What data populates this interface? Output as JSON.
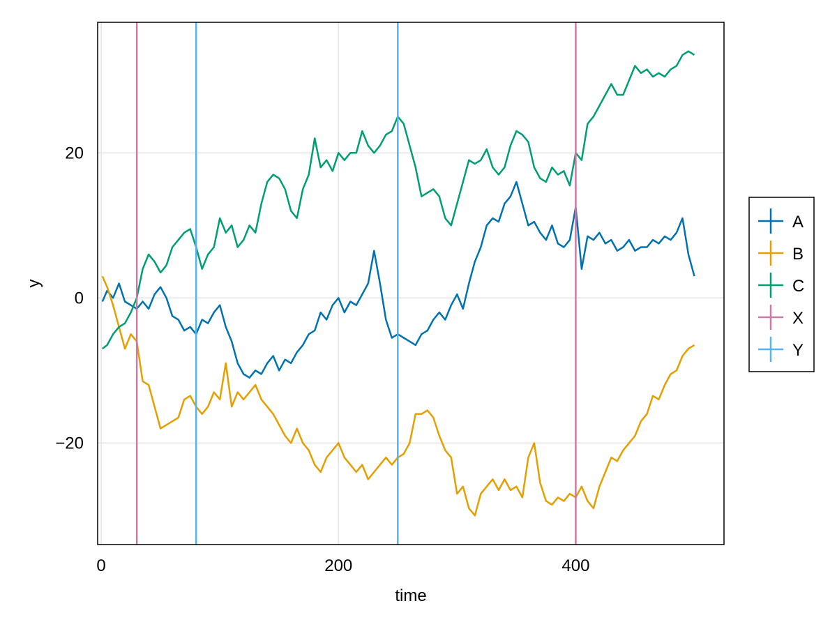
{
  "chart_data": {
    "type": "line",
    "title": "",
    "xlabel": "time",
    "ylabel": "y",
    "xlim": [
      -3,
      525
    ],
    "ylim": [
      -34,
      38
    ],
    "xticks": [
      0,
      200,
      400
    ],
    "xtick_labels": [
      "0",
      "200",
      "400"
    ],
    "yticks": [
      -20,
      0,
      20
    ],
    "ytick_labels": [
      "−20",
      "0",
      "20"
    ],
    "grid": true,
    "legend_position": "right",
    "series": [
      {
        "name": "A",
        "color": "#0072B2",
        "x": [
          1,
          5,
          10,
          15,
          20,
          25,
          30,
          35,
          40,
          45,
          50,
          55,
          60,
          65,
          70,
          75,
          80,
          85,
          90,
          95,
          100,
          105,
          110,
          115,
          120,
          125,
          130,
          135,
          140,
          145,
          150,
          155,
          160,
          165,
          170,
          175,
          180,
          185,
          190,
          195,
          200,
          205,
          210,
          215,
          220,
          225,
          230,
          235,
          240,
          245,
          250,
          255,
          260,
          265,
          270,
          275,
          280,
          285,
          290,
          295,
          300,
          305,
          310,
          315,
          320,
          325,
          330,
          335,
          340,
          345,
          350,
          355,
          360,
          365,
          370,
          375,
          380,
          385,
          390,
          395,
          400,
          405,
          410,
          415,
          420,
          425,
          430,
          435,
          440,
          445,
          450,
          455,
          460,
          465,
          470,
          475,
          480,
          485,
          490,
          495,
          500
        ],
        "y": [
          -0.5,
          1,
          0,
          2,
          -0.5,
          -1,
          -1.5,
          -0.5,
          -1.5,
          0.5,
          1.5,
          0,
          -2.5,
          -3,
          -4.5,
          -4,
          -5,
          -3,
          -3.5,
          -2,
          -1,
          -4,
          -6,
          -9,
          -10.5,
          -11,
          -10,
          -10.5,
          -9,
          -8,
          -10,
          -8.5,
          -9,
          -7.5,
          -6.5,
          -5,
          -4.5,
          -2,
          -3,
          -1,
          0,
          -2,
          -0.5,
          -1,
          0.5,
          2,
          6.5,
          2,
          -3,
          -5.5,
          -5,
          -5.5,
          -6,
          -6.5,
          -5,
          -4.5,
          -3,
          -2,
          -3,
          -1,
          0.5,
          -1.5,
          2,
          5,
          7,
          10,
          11,
          10.5,
          13,
          14,
          16,
          13,
          10,
          10.5,
          9,
          8,
          10,
          7.5,
          7,
          8,
          12.5,
          4,
          8.5,
          8,
          9,
          7.5,
          8,
          6.5,
          7,
          8,
          6.5,
          7,
          7,
          8,
          7.5,
          8.5,
          8,
          9,
          11,
          6,
          3
        ]
      },
      {
        "name": "B",
        "color": "#E69F00",
        "x": [
          1,
          5,
          10,
          15,
          20,
          25,
          30,
          35,
          40,
          45,
          50,
          55,
          60,
          65,
          70,
          75,
          80,
          85,
          90,
          95,
          100,
          105,
          110,
          115,
          120,
          125,
          130,
          135,
          140,
          145,
          150,
          155,
          160,
          165,
          170,
          175,
          180,
          185,
          190,
          195,
          200,
          205,
          210,
          215,
          220,
          225,
          230,
          235,
          240,
          245,
          250,
          255,
          260,
          265,
          270,
          275,
          280,
          285,
          290,
          295,
          300,
          305,
          310,
          315,
          320,
          325,
          330,
          335,
          340,
          345,
          350,
          355,
          360,
          365,
          370,
          375,
          380,
          385,
          390,
          395,
          400,
          405,
          410,
          415,
          420,
          425,
          430,
          435,
          440,
          445,
          450,
          455,
          460,
          465,
          470,
          475,
          480,
          485,
          490,
          495,
          500
        ],
        "y": [
          3,
          1.5,
          -1,
          -4,
          -7,
          -5,
          -6,
          -11.5,
          -12,
          -15,
          -18,
          -17.5,
          -17,
          -16.5,
          -14,
          -13.5,
          -15,
          -16,
          -15,
          -13,
          -14,
          -9,
          -15,
          -13,
          -14,
          -13,
          -12,
          -14,
          -15,
          -16,
          -17.5,
          -19,
          -20,
          -18,
          -20,
          -21,
          -23,
          -24,
          -22,
          -21,
          -20,
          -22,
          -23,
          -24,
          -23,
          -25,
          -24,
          -23,
          -22,
          -23,
          -22,
          -21.5,
          -20,
          -16,
          -16,
          -15.5,
          -16.5,
          -19,
          -21,
          -22,
          -27,
          -26,
          -29,
          -30,
          -27,
          -26,
          -25,
          -26.5,
          -25,
          -26.5,
          -26,
          -27.5,
          -22,
          -20,
          -25.5,
          -28,
          -28.5,
          -27.5,
          -28,
          -27,
          -27.5,
          -26,
          -28,
          -29,
          -26,
          -24,
          -22,
          -22.5,
          -21,
          -20,
          -19,
          -17,
          -16,
          -13.5,
          -14,
          -12,
          -10.5,
          -10,
          -8,
          -7,
          -6.5
        ]
      },
      {
        "name": "C",
        "color": "#009E73",
        "x": [
          1,
          5,
          10,
          15,
          20,
          25,
          30,
          35,
          40,
          45,
          50,
          55,
          60,
          65,
          70,
          75,
          80,
          85,
          90,
          95,
          100,
          105,
          110,
          115,
          120,
          125,
          130,
          135,
          140,
          145,
          150,
          155,
          160,
          165,
          170,
          175,
          180,
          185,
          190,
          195,
          200,
          205,
          210,
          215,
          220,
          225,
          230,
          235,
          240,
          245,
          250,
          255,
          260,
          265,
          270,
          275,
          280,
          285,
          290,
          295,
          300,
          305,
          310,
          315,
          320,
          325,
          330,
          335,
          340,
          345,
          350,
          355,
          360,
          365,
          370,
          375,
          380,
          385,
          390,
          395,
          400,
          405,
          410,
          415,
          420,
          425,
          430,
          435,
          440,
          445,
          450,
          455,
          460,
          465,
          470,
          475,
          480,
          485,
          490,
          495,
          500
        ],
        "y": [
          -7,
          -6.5,
          -5,
          -4,
          -3.5,
          -2,
          0,
          4,
          6,
          5,
          3.5,
          4.5,
          7,
          8,
          9,
          9.5,
          7,
          4,
          6,
          7,
          11,
          9,
          10,
          7,
          8,
          10,
          9,
          13,
          16,
          17,
          16.5,
          15,
          12,
          11,
          15,
          17,
          22,
          18,
          19,
          17.5,
          20,
          19,
          20,
          20,
          23,
          21,
          20,
          21,
          22.5,
          23,
          25,
          24,
          21,
          18,
          14,
          14.5,
          15,
          14,
          11,
          10,
          13,
          16,
          19,
          18.5,
          19,
          20.5,
          18,
          17,
          18,
          21,
          23,
          22.5,
          21.5,
          18,
          16.5,
          16,
          18,
          17,
          17.5,
          15.5,
          20,
          19,
          24,
          25,
          26.5,
          28,
          29.5,
          28,
          28,
          30,
          32,
          31,
          31.5,
          30.5,
          31,
          30.5,
          31.5,
          32,
          33.5,
          34,
          33.5
        ]
      },
      {
        "name": "X",
        "color": "#CC79A7",
        "vlines": [
          30,
          400
        ]
      },
      {
        "name": "Y",
        "color": "#56B4E9",
        "vlines": [
          80,
          250
        ]
      }
    ]
  }
}
